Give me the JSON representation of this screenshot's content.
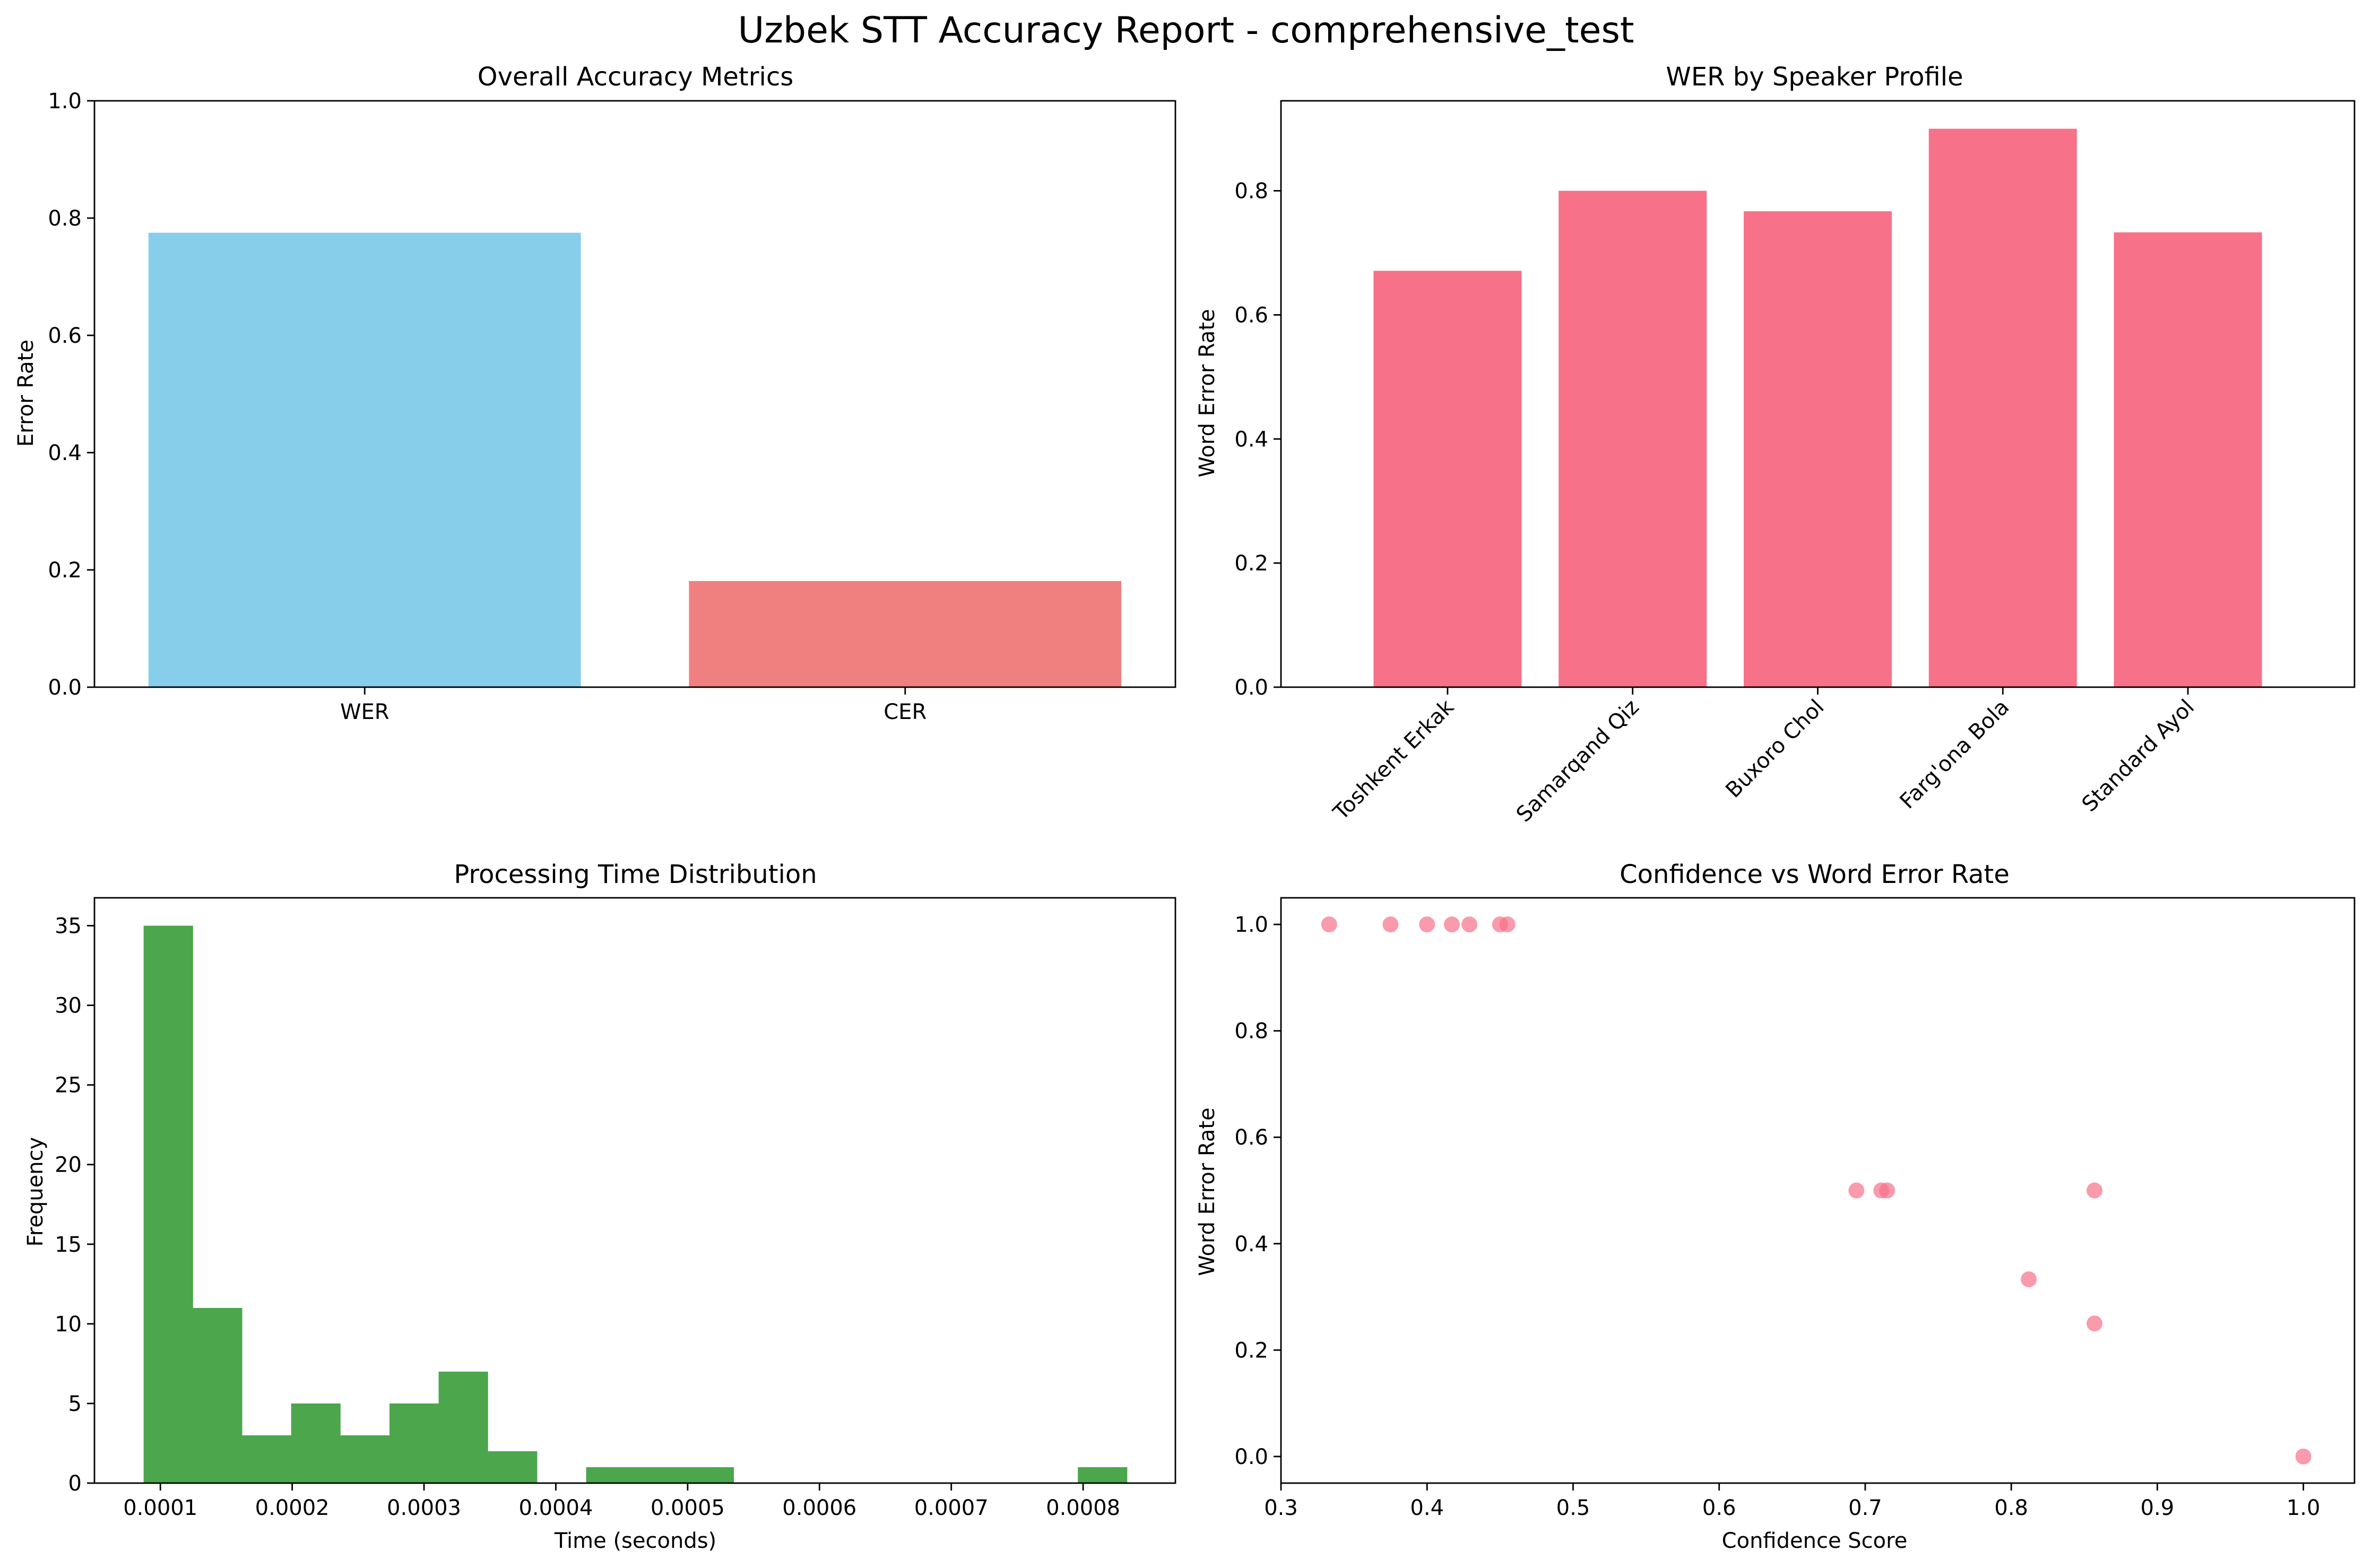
{
  "suptitle": "Uzbek STT Accuracy Report - comprehensive_test",
  "chart_data": [
    {
      "type": "bar",
      "title": "Overall Accuracy Metrics",
      "xlabel": "",
      "ylabel": "Error Rate",
      "categories": [
        "WER",
        "CER"
      ],
      "values": [
        0.775,
        0.181
      ],
      "colors": [
        "#87ceeb",
        "#f08080"
      ],
      "ylim": [
        0,
        1.0
      ],
      "yticks": [
        "0.0",
        "0.2",
        "0.4",
        "0.6",
        "0.8",
        "1.0"
      ],
      "grid": false
    },
    {
      "type": "bar",
      "title": "WER by Speaker Profile",
      "xlabel": "",
      "ylabel": "Word Error Rate",
      "categories": [
        "Toshkent Erkak",
        "Samarqand Qiz",
        "Buxoro Chol",
        "Farg'ona Bola",
        "Standard Ayol"
      ],
      "values": [
        0.671,
        0.8,
        0.767,
        0.9,
        0.733
      ],
      "colors": [
        "#f77189"
      ],
      "ylim": [
        0,
        0.945
      ],
      "yticks": [
        "0.0",
        "0.2",
        "0.4",
        "0.6",
        "0.8"
      ],
      "grid": false
    },
    {
      "type": "bar",
      "subtype": "histogram",
      "title": "Processing Time Distribution",
      "xlabel": "Time (seconds)",
      "ylabel": "Frequency",
      "bin_edges": [
        8.73e-05,
        0.0001246,
        0.0001619,
        0.0001992,
        0.0002365,
        0.0002738,
        0.0003111,
        0.0003484,
        0.0003857,
        0.000423,
        0.0004603,
        0.0004976,
        0.0005349,
        0.0005722,
        0.0006095,
        0.0006468,
        0.0006841,
        0.0007214,
        0.0007587,
        0.000796,
        0.0008333
      ],
      "values": [
        35,
        11,
        3,
        5,
        3,
        5,
        7,
        2,
        0,
        1,
        1,
        1,
        0,
        0,
        0,
        0,
        0,
        0,
        0,
        1
      ],
      "colors": [
        "#4ca64c"
      ],
      "xlim": [
        5e-05,
        0.00087
      ],
      "ylim": [
        0,
        36.75
      ],
      "xticks": [
        "0.0001",
        "0.0002",
        "0.0003",
        "0.0004",
        "0.0005",
        "0.0006",
        "0.0007",
        "0.0008"
      ],
      "yticks": [
        "0",
        "5",
        "10",
        "15",
        "20",
        "25",
        "30",
        "35"
      ],
      "grid": false
    },
    {
      "type": "scatter",
      "title": "Confidence vs Word Error Rate",
      "xlabel": "Confidence Score",
      "ylabel": "Word Error Rate",
      "x": [
        0.333,
        0.375,
        0.4,
        0.417,
        0.429,
        0.45,
        0.455,
        0.694,
        0.711,
        0.715,
        0.812,
        0.857,
        0.857,
        1.0
      ],
      "y": [
        1.0,
        1.0,
        1.0,
        1.0,
        1.0,
        1.0,
        1.0,
        0.5,
        0.5,
        0.5,
        0.333,
        0.5,
        0.25,
        0.0
      ],
      "colors": [
        "#f77189"
      ],
      "xlim": [
        0.3,
        1.035
      ],
      "ylim": [
        -0.05,
        1.05
      ],
      "xticks": [
        "0.3",
        "0.4",
        "0.5",
        "0.6",
        "0.7",
        "0.8",
        "0.9",
        "1.0"
      ],
      "yticks": [
        "0.0",
        "0.2",
        "0.4",
        "0.6",
        "0.8",
        "1.0"
      ],
      "grid": false
    }
  ]
}
